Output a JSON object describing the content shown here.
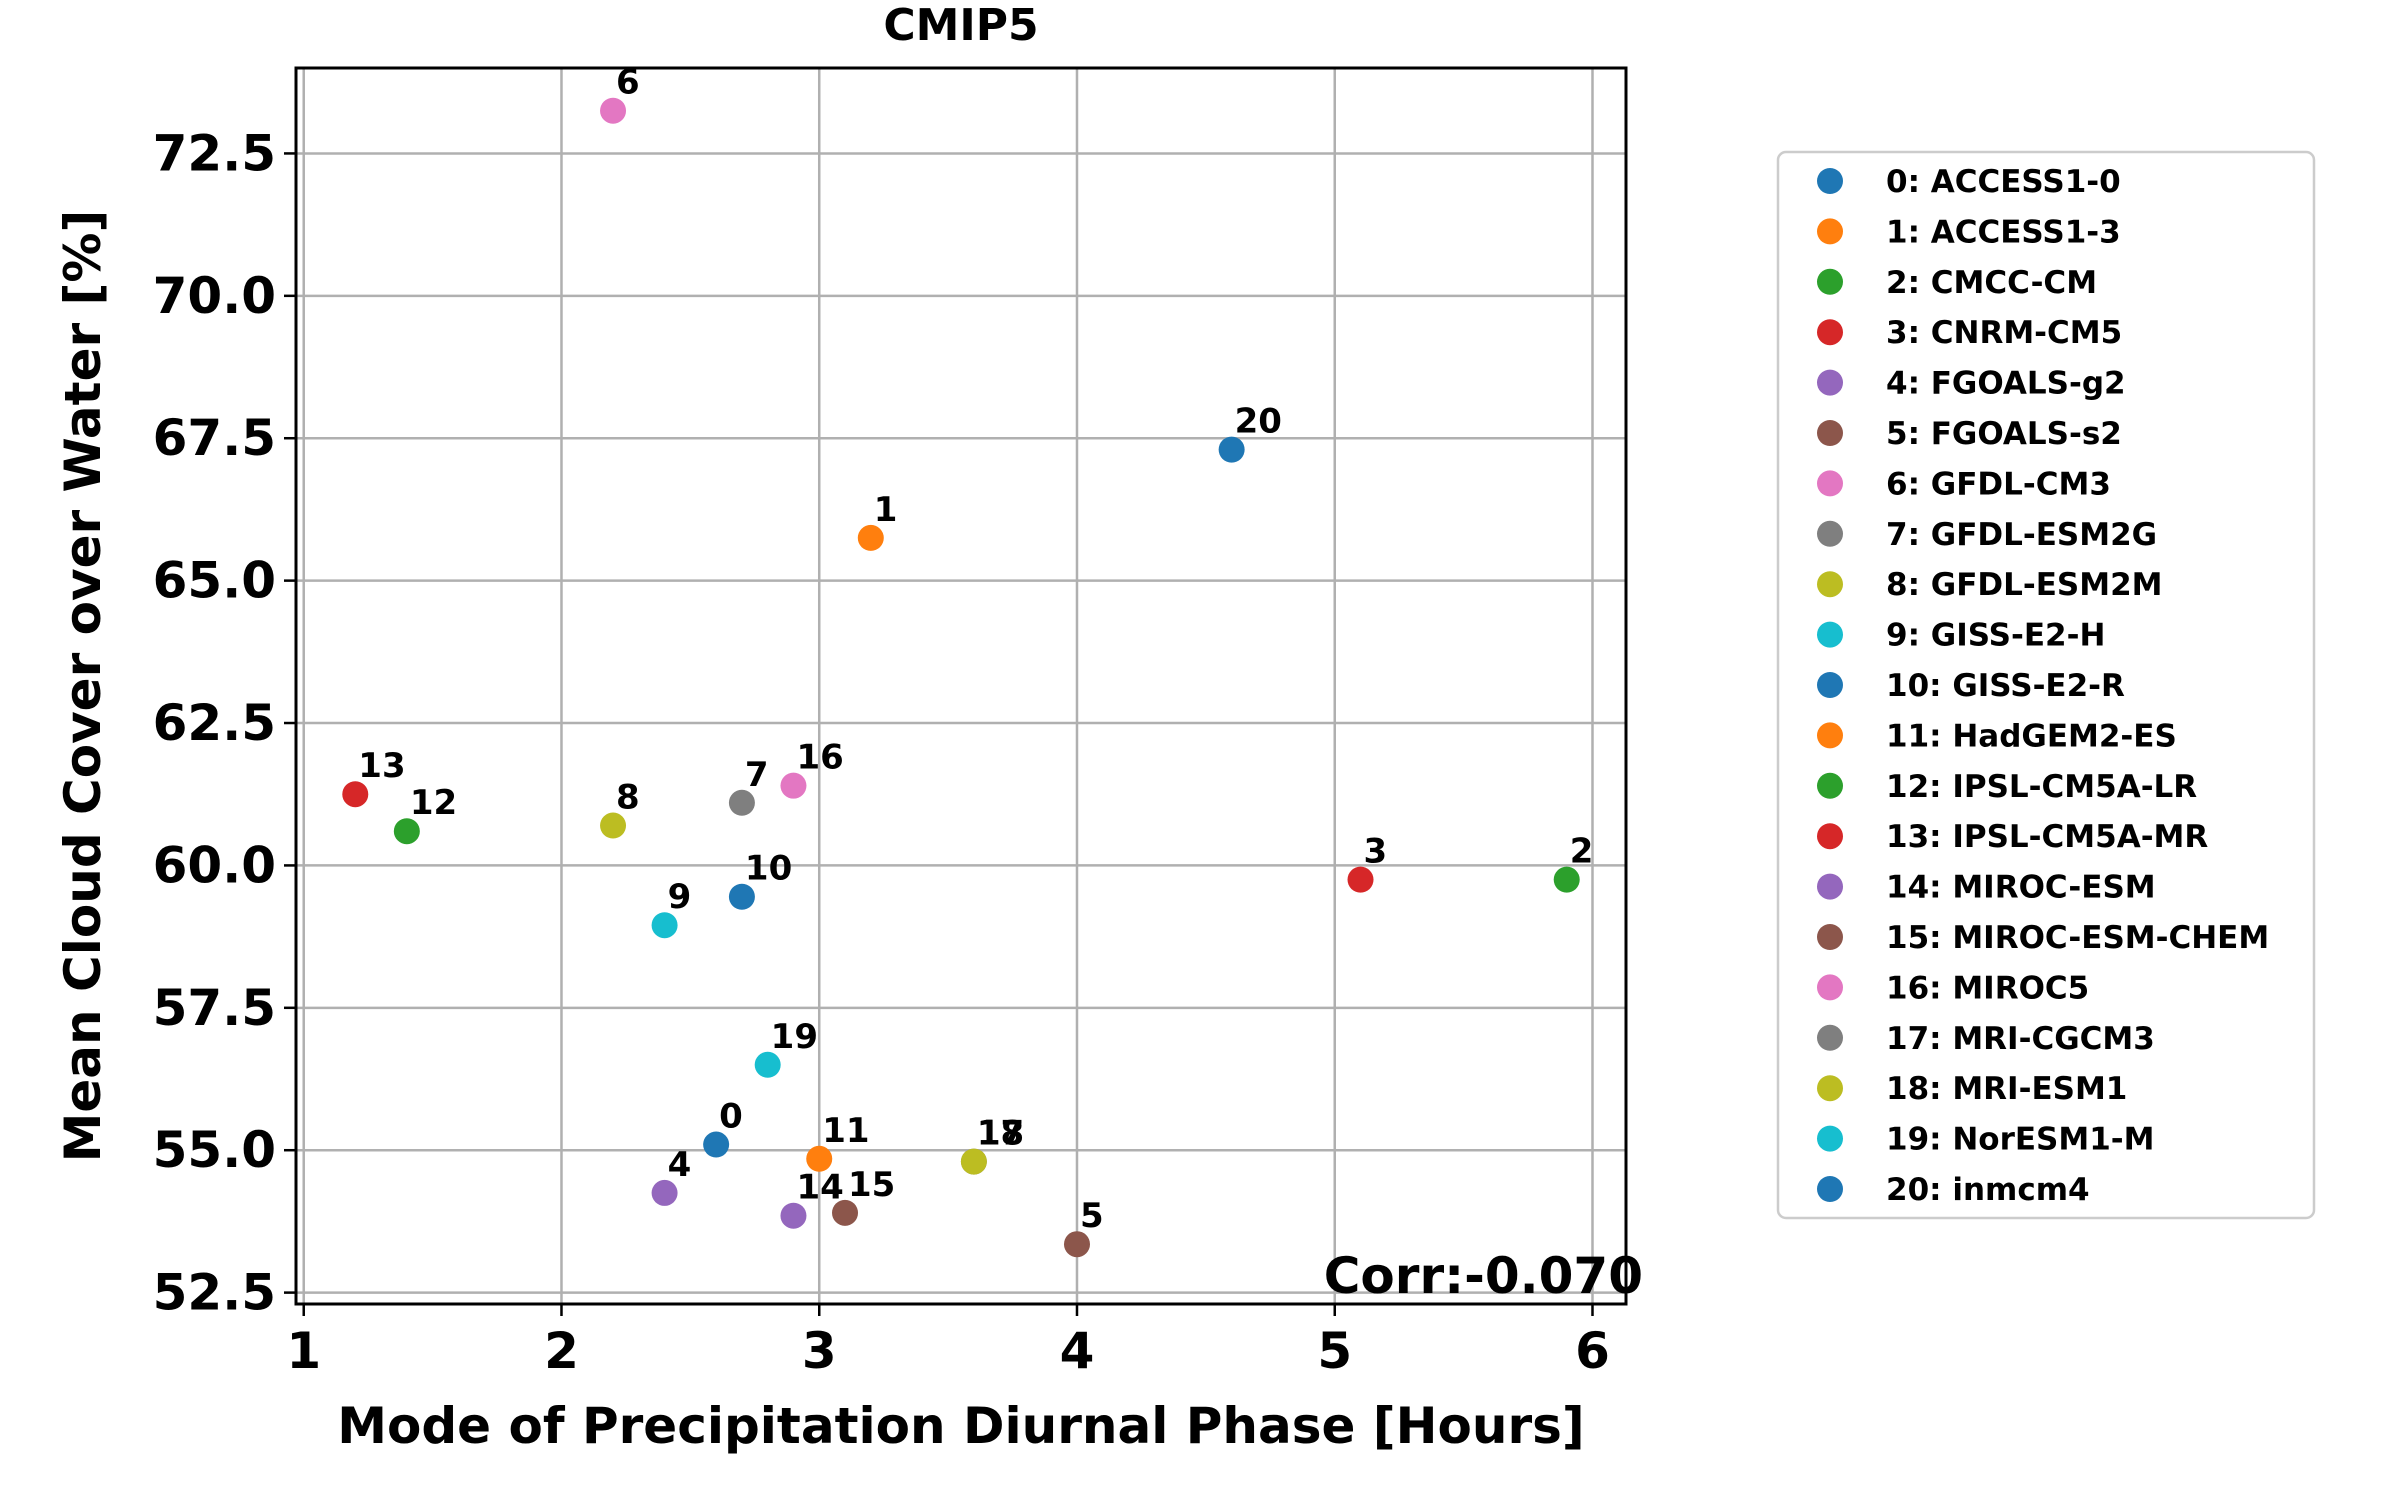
{
  "chart_data": {
    "type": "scatter",
    "title": "CMIP5",
    "xlabel": "Mode of Precipitation Diurnal Phase [Hours]",
    "ylabel": "Mean Cloud Cover over Water [%]",
    "xlim": [
      0.97,
      6.13
    ],
    "ylim": [
      52.3,
      74.0
    ],
    "x_ticks": [
      1,
      2,
      3,
      4,
      5,
      6
    ],
    "x_tick_labels": [
      "1",
      "2",
      "3",
      "4",
      "5",
      "6"
    ],
    "y_ticks": [
      52.5,
      55.0,
      57.5,
      60.0,
      62.5,
      65.0,
      67.5,
      70.0,
      72.5
    ],
    "y_tick_labels": [
      "52.5",
      "55.0",
      "57.5",
      "60.0",
      "62.5",
      "65.0",
      "67.5",
      "70.0",
      "72.5"
    ],
    "grid": true,
    "legend_position": "right, outside plot",
    "annotation": "Corr:-0.070",
    "points": [
      {
        "id": "0",
        "label": "0: ACCESS1-0",
        "x": 2.6,
        "y": 55.1,
        "color": "#1f77b4"
      },
      {
        "id": "1",
        "label": "1: ACCESS1-3",
        "x": 3.2,
        "y": 65.75,
        "color": "#ff7f0e"
      },
      {
        "id": "2",
        "label": "2: CMCC-CM",
        "x": 5.9,
        "y": 59.75,
        "color": "#2ca02c"
      },
      {
        "id": "3",
        "label": "3: CNRM-CM5",
        "x": 5.1,
        "y": 59.75,
        "color": "#d62728"
      },
      {
        "id": "4",
        "label": "4: FGOALS-g2",
        "x": 2.4,
        "y": 54.25,
        "color": "#9467bd"
      },
      {
        "id": "5",
        "label": "5: FGOALS-s2",
        "x": 4.0,
        "y": 53.35,
        "color": "#8c564b"
      },
      {
        "id": "6",
        "label": "6: GFDL-CM3",
        "x": 2.2,
        "y": 73.25,
        "color": "#e377c2"
      },
      {
        "id": "7",
        "label": "7: GFDL-ESM2G",
        "x": 2.7,
        "y": 61.1,
        "color": "#7f7f7f"
      },
      {
        "id": "8",
        "label": "8: GFDL-ESM2M",
        "x": 2.2,
        "y": 60.7,
        "color": "#bcbd22"
      },
      {
        "id": "9",
        "label": "9: GISS-E2-H",
        "x": 2.4,
        "y": 58.95,
        "color": "#17becf"
      },
      {
        "id": "10",
        "label": "10: GISS-E2-R",
        "x": 2.7,
        "y": 59.45,
        "color": "#1f77b4"
      },
      {
        "id": "11",
        "label": "11: HadGEM2-ES",
        "x": 3.0,
        "y": 54.85,
        "color": "#ff7f0e"
      },
      {
        "id": "12",
        "label": "12: IPSL-CM5A-LR",
        "x": 1.4,
        "y": 60.6,
        "color": "#2ca02c"
      },
      {
        "id": "13",
        "label": "13: IPSL-CM5A-MR",
        "x": 1.2,
        "y": 61.25,
        "color": "#d62728"
      },
      {
        "id": "14",
        "label": "14: MIROC-ESM",
        "x": 2.9,
        "y": 53.85,
        "color": "#9467bd"
      },
      {
        "id": "15",
        "label": "15: MIROC-ESM-CHEM",
        "x": 3.1,
        "y": 53.9,
        "color": "#8c564b"
      },
      {
        "id": "16",
        "label": "16: MIROC5",
        "x": 2.9,
        "y": 61.4,
        "color": "#e377c2"
      },
      {
        "id": "17",
        "label": "17: MRI-CGCM3",
        "x": 3.6,
        "y": 54.8,
        "color": "#7f7f7f"
      },
      {
        "id": "18",
        "label": "18: MRI-ESM1",
        "x": 3.6,
        "y": 54.8,
        "color": "#bcbd22"
      },
      {
        "id": "19",
        "label": "19: NorESM1-M",
        "x": 2.8,
        "y": 56.5,
        "color": "#17becf"
      },
      {
        "id": "20",
        "label": "20: inmcm4",
        "x": 4.6,
        "y": 67.3,
        "color": "#1f77b4"
      }
    ]
  }
}
